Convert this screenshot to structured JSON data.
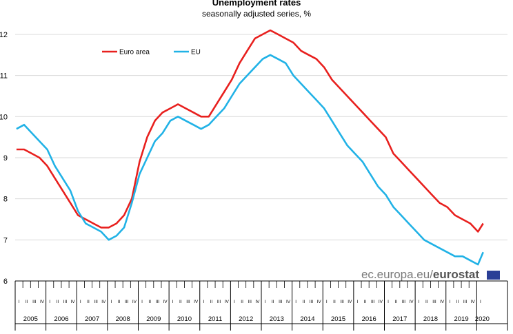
{
  "chart_data": {
    "type": "line",
    "title": "Unemployment rates",
    "subtitle": "seasonally adjusted series, %",
    "xlabel": "",
    "ylabel": "",
    "ylim": [
      6,
      12.2
    ],
    "yticks": [
      "6",
      "7",
      "8",
      "9",
      "10",
      "11",
      "12"
    ],
    "grid": "horizontal",
    "legend_position": "top-left",
    "quarter_labels": [
      "I",
      "II",
      "III",
      "IV"
    ],
    "years": [
      "2005",
      "2006",
      "2007",
      "2008",
      "2009",
      "2010",
      "2011",
      "2012",
      "2013",
      "2014",
      "2015",
      "2016",
      "2017",
      "2018",
      "2019",
      "2020"
    ],
    "x": [
      "2005-01",
      "2005-04",
      "2005-07",
      "2005-10",
      "2006-01",
      "2006-04",
      "2006-07",
      "2006-10",
      "2007-01",
      "2007-04",
      "2007-07",
      "2007-10",
      "2008-01",
      "2008-04",
      "2008-07",
      "2008-10",
      "2009-01",
      "2009-04",
      "2009-07",
      "2009-10",
      "2010-01",
      "2010-04",
      "2010-07",
      "2010-10",
      "2011-01",
      "2011-04",
      "2011-07",
      "2011-10",
      "2012-01",
      "2012-04",
      "2012-07",
      "2012-10",
      "2013-01",
      "2013-04",
      "2013-07",
      "2013-10",
      "2014-01",
      "2014-04",
      "2014-07",
      "2014-10",
      "2015-01",
      "2015-04",
      "2015-07",
      "2015-10",
      "2016-01",
      "2016-04",
      "2016-07",
      "2016-10",
      "2017-01",
      "2017-04",
      "2017-07",
      "2017-10",
      "2018-01",
      "2018-04",
      "2018-07",
      "2018-10",
      "2019-01",
      "2019-04",
      "2019-07",
      "2019-10",
      "2020-01",
      "2020-03"
    ],
    "series": [
      {
        "name": "Euro area",
        "color": "#e8201e",
        "values": [
          9.2,
          9.2,
          9.1,
          9.0,
          8.8,
          8.5,
          8.2,
          7.9,
          7.6,
          7.5,
          7.4,
          7.3,
          7.3,
          7.4,
          7.6,
          8.0,
          8.9,
          9.5,
          9.9,
          10.1,
          10.2,
          10.3,
          10.2,
          10.1,
          10.0,
          10.0,
          10.3,
          10.6,
          10.9,
          11.3,
          11.6,
          11.9,
          12.0,
          12.1,
          12.0,
          11.9,
          11.8,
          11.6,
          11.5,
          11.4,
          11.2,
          10.9,
          10.7,
          10.5,
          10.3,
          10.1,
          9.9,
          9.7,
          9.5,
          9.1,
          8.9,
          8.7,
          8.5,
          8.3,
          8.1,
          7.9,
          7.8,
          7.6,
          7.5,
          7.4,
          7.2,
          7.4
        ]
      },
      {
        "name": "EU",
        "color": "#21b2e6",
        "values": [
          9.7,
          9.8,
          9.6,
          9.4,
          9.2,
          8.8,
          8.5,
          8.2,
          7.7,
          7.4,
          7.3,
          7.2,
          7.0,
          7.1,
          7.3,
          7.9,
          8.6,
          9.0,
          9.4,
          9.6,
          9.9,
          10.0,
          9.9,
          9.8,
          9.7,
          9.8,
          10.0,
          10.2,
          10.5,
          10.8,
          11.0,
          11.2,
          11.4,
          11.5,
          11.4,
          11.3,
          11.0,
          10.8,
          10.6,
          10.4,
          10.2,
          9.9,
          9.6,
          9.3,
          9.1,
          8.9,
          8.6,
          8.3,
          8.1,
          7.8,
          7.6,
          7.4,
          7.2,
          7.0,
          6.9,
          6.8,
          6.7,
          6.6,
          6.6,
          6.5,
          6.4,
          6.7
        ]
      }
    ]
  },
  "source": {
    "text": "ec.europa.eu/",
    "bold": "eurostat"
  }
}
